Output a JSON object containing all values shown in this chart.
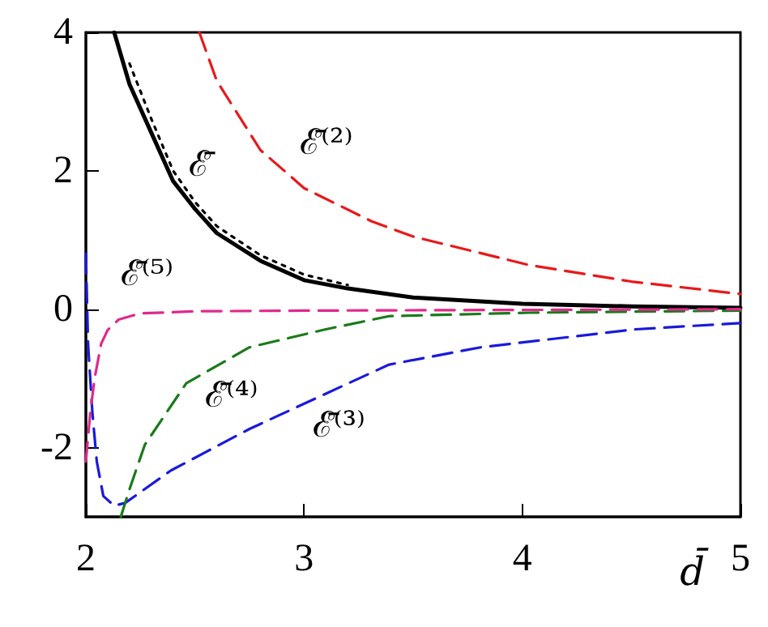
{
  "chart_data": {
    "type": "line",
    "xlabel": "d̄",
    "xlim": [
      2,
      5
    ],
    "ylim": [
      -3,
      4
    ],
    "xticks": [
      2,
      3,
      4,
      5
    ],
    "yticks": [
      -2,
      0,
      2,
      4
    ],
    "grid": false,
    "legend": false,
    "marker": "none",
    "series": [
      {
        "name": "ℰ̄",
        "color": "#000000",
        "line_style": "solid",
        "x": [
          2.13,
          2.2,
          2.3,
          2.4,
          2.5,
          2.6,
          2.8,
          3.0,
          3.2,
          3.5,
          4.0,
          4.5,
          5.0
        ],
        "values": [
          4,
          3.25,
          2.55,
          1.85,
          1.45,
          1.1,
          0.7,
          0.42,
          0.3,
          0.17,
          0.08,
          0.04,
          0.02
        ]
      },
      {
        "color": "#000000",
        "line_style": "dotted",
        "x": [
          2.2,
          2.3,
          2.4,
          2.5,
          2.6,
          2.8,
          3.0,
          3.2
        ],
        "values": [
          3.55,
          2.75,
          2.0,
          1.55,
          1.2,
          0.78,
          0.5,
          0.35
        ]
      },
      {
        "name": "ℰ̄⁽²⁾",
        "color": "#e8191a",
        "line_style": "dashed",
        "x": [
          2.52,
          2.6,
          2.8,
          3.0,
          3.31,
          3.5,
          4.03,
          4.5,
          5.0
        ],
        "values": [
          4,
          3.3,
          2.3,
          1.75,
          1.27,
          1.05,
          0.64,
          0.4,
          0.22
        ]
      },
      {
        "name": "ℰ̄⁽³⁾",
        "color": "#1a1adb",
        "line_style": "dashed",
        "x": [
          2.0,
          2.01,
          2.03,
          2.05,
          2.08,
          2.13,
          2.18,
          2.39,
          2.75,
          3.1,
          3.39,
          3.81,
          4.52,
          5.0
        ],
        "values": [
          0.8,
          -0.5,
          -1.5,
          -2.2,
          -2.7,
          -2.84,
          -2.8,
          -2.33,
          -1.73,
          -1.22,
          -0.8,
          -0.55,
          -0.29,
          -0.2
        ]
      },
      {
        "name": "ℰ̄⁽⁴⁾",
        "color": "#1a7a1a",
        "line_style": "dashed",
        "x": [
          2.16,
          2.2,
          2.27,
          2.46,
          2.75,
          3.1,
          3.39,
          4.03,
          5.0
        ],
        "values": [
          -3,
          -2.6,
          -1.96,
          -1.07,
          -0.55,
          -0.29,
          -0.1,
          -0.05,
          -0.02
        ]
      },
      {
        "name": "ℰ̄⁽⁵⁾",
        "color": "#e0288c",
        "line_style": "dashed",
        "x": [
          2.0,
          2.02,
          2.04,
          2.07,
          2.1,
          2.15,
          2.25,
          2.5,
          3.0,
          4.0,
          5.0
        ],
        "values": [
          -2.2,
          -1.5,
          -1.0,
          -0.5,
          -0.3,
          -0.15,
          -0.06,
          -0.03,
          -0.02,
          -0.01,
          0
        ]
      }
    ]
  }
}
